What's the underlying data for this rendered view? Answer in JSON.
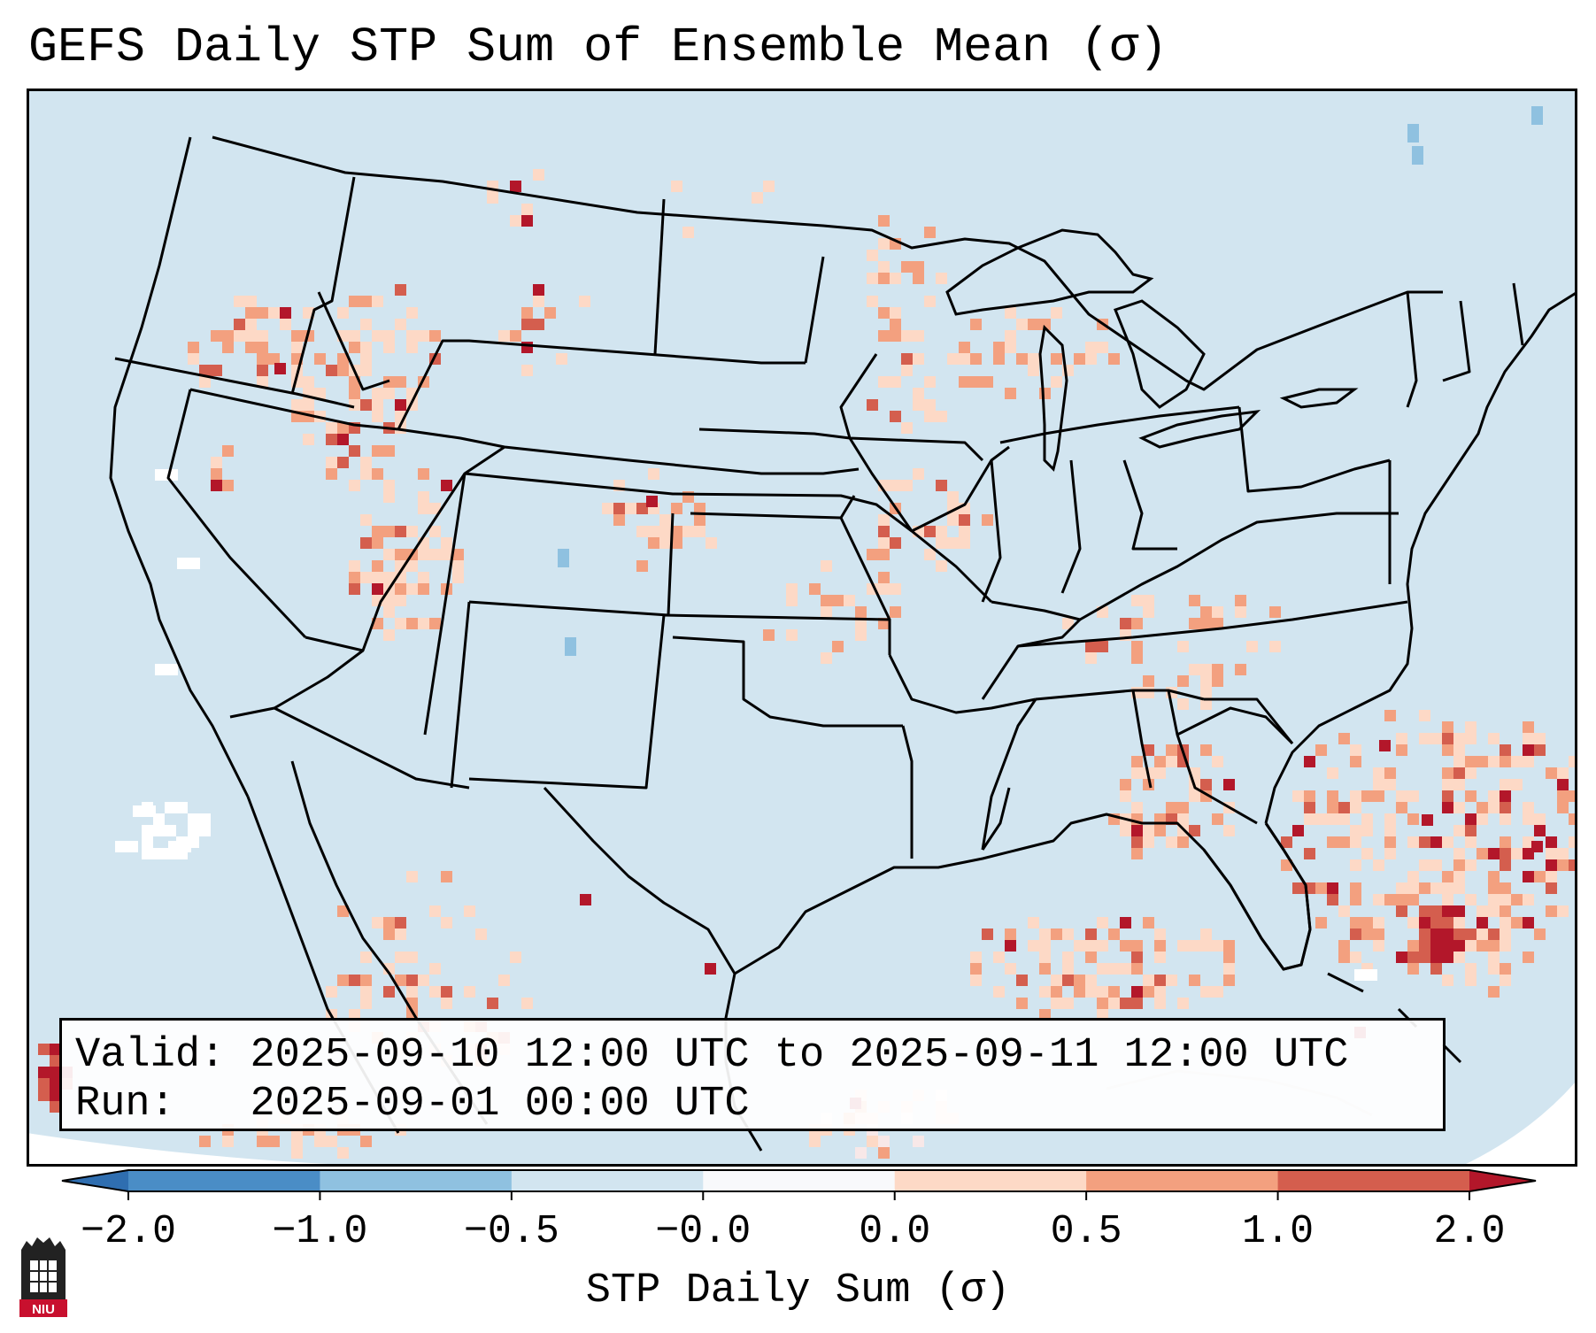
{
  "title": "GEFS Daily STP Sum of Ensemble Mean (σ)",
  "info": {
    "valid_label": "Valid:",
    "valid_value": "2025-09-10 12:00 UTC to 2025-09-11 12:00 UTC",
    "run_label": "Run:",
    "run_value": "2025-09-01 00:00 UTC"
  },
  "colorbar": {
    "label": "STP Daily Sum (σ)",
    "ticks": [
      "−2.0",
      "−1.0",
      "−0.5",
      "−0.0",
      "0.0",
      "0.5",
      "1.0",
      "2.0"
    ],
    "bin_colors": [
      "#4a8dc6",
      "#8fc1e0",
      "#d2e5f0",
      "#f8f9fb",
      "#fdd9c6",
      "#f3a07f",
      "#d45e4e"
    ],
    "under_color": "#2f6eb0",
    "over_color": "#b3172a"
  },
  "logo_text": "NIU",
  "map": {
    "background_color": "#d2e5f0",
    "ocean_color": "#d2e5f0"
  }
}
